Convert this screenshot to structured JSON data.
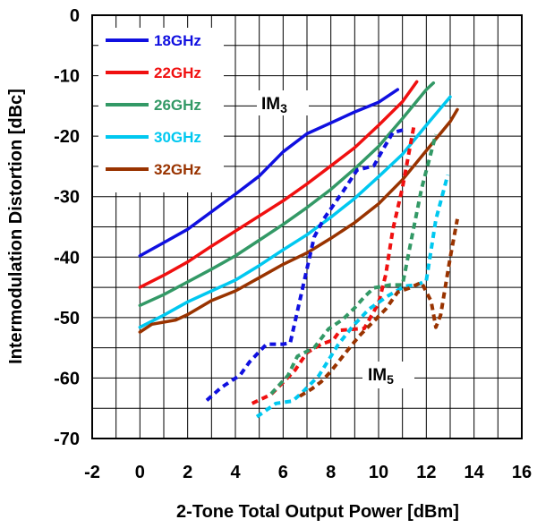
{
  "chart_data": {
    "type": "line",
    "xlabel": "2-Tone Total Output Power [dBm]",
    "ylabel": "Intermodulation Distortion [dBc]",
    "xlim": [
      -2,
      16
    ],
    "ylim": [
      -70,
      0
    ],
    "x_ticks": [
      "-2",
      "0",
      "2",
      "4",
      "6",
      "8",
      "10",
      "12",
      "14",
      "16"
    ],
    "y_ticks": [
      "0",
      "-10",
      "-20",
      "-30",
      "-40",
      "-50",
      "-60",
      "-70"
    ],
    "grid": true,
    "legend_position": "top-left",
    "annotations": {
      "im3": {
        "main": "IM",
        "sub": "3"
      },
      "im5": {
        "main": "IM",
        "sub": "5"
      }
    },
    "series": [
      {
        "name": "18GHz",
        "color": "#1010e0",
        "im3": [
          [
            0,
            -39.8
          ],
          [
            1,
            -37.6
          ],
          [
            2,
            -35.4
          ],
          [
            3,
            -32.5
          ],
          [
            4,
            -29.6
          ],
          [
            5,
            -26.6
          ],
          [
            6,
            -22.6
          ],
          [
            7,
            -19.6
          ],
          [
            8,
            -17.8
          ],
          [
            9,
            -16
          ],
          [
            10,
            -14.4
          ],
          [
            10.8,
            -12.3
          ]
        ],
        "im5": [
          [
            2.8,
            -63.7
          ],
          [
            3.4,
            -61.6
          ],
          [
            4.2,
            -59.5
          ],
          [
            4.6,
            -57.3
          ],
          [
            5.3,
            -54.4
          ],
          [
            6.0,
            -54.4
          ],
          [
            6.3,
            -54.2
          ],
          [
            6.8,
            -45.4
          ],
          [
            7.3,
            -36.7
          ],
          [
            7.7,
            -33.7
          ],
          [
            8.5,
            -29.2
          ],
          [
            9.1,
            -25.6
          ],
          [
            9.8,
            -24.9
          ],
          [
            10.2,
            -22.1
          ],
          [
            10.6,
            -19.4
          ],
          [
            11.1,
            -18.9
          ]
        ]
      },
      {
        "name": "22GHz",
        "color": "#f01010",
        "im3": [
          [
            0,
            -45
          ],
          [
            1,
            -43
          ],
          [
            2,
            -40.8
          ],
          [
            3,
            -38.2
          ],
          [
            4,
            -35.7
          ],
          [
            5,
            -33.2
          ],
          [
            6,
            -30.7
          ],
          [
            7,
            -27.9
          ],
          [
            8,
            -24.9
          ],
          [
            9,
            -21.9
          ],
          [
            10,
            -18.2
          ],
          [
            11,
            -14.3
          ],
          [
            11.6,
            -11
          ]
        ],
        "im5": [
          [
            4.7,
            -64.2
          ],
          [
            5.5,
            -62.7
          ],
          [
            6.5,
            -58.7
          ],
          [
            7.0,
            -55.8
          ],
          [
            7.6,
            -54.4
          ],
          [
            8.1,
            -53.7
          ],
          [
            8.4,
            -52.1
          ],
          [
            9.4,
            -51.8
          ],
          [
            9.6,
            -50.4
          ],
          [
            10.0,
            -47.6
          ],
          [
            10.3,
            -42.9
          ],
          [
            10.6,
            -35.4
          ],
          [
            11.0,
            -28.5
          ],
          [
            11.5,
            -17.9
          ]
        ]
      },
      {
        "name": "26GHz",
        "color": "#339966",
        "im3": [
          [
            0,
            -48
          ],
          [
            1,
            -46.2
          ],
          [
            2,
            -44.1
          ],
          [
            3,
            -42
          ],
          [
            4,
            -39.8
          ],
          [
            5,
            -37.2
          ],
          [
            6,
            -34.6
          ],
          [
            7,
            -31.8
          ],
          [
            8,
            -28.8
          ],
          [
            9,
            -25.4
          ],
          [
            10,
            -21.7
          ],
          [
            11,
            -17.1
          ],
          [
            12,
            -12.3
          ],
          [
            12.3,
            -11.2
          ]
        ],
        "im5": [
          [
            5.5,
            -62.6
          ],
          [
            6.2,
            -59.6
          ],
          [
            6.6,
            -56.4
          ],
          [
            7.3,
            -55.0
          ],
          [
            7.9,
            -51.9
          ],
          [
            8.5,
            -50.3
          ],
          [
            9.0,
            -48.4
          ],
          [
            9.4,
            -46.6
          ],
          [
            9.8,
            -45.1
          ],
          [
            10.5,
            -44.6
          ],
          [
            11.0,
            -44.6
          ],
          [
            11.4,
            -36.6
          ],
          [
            11.8,
            -28.7
          ],
          [
            12.4,
            -19.7
          ]
        ]
      },
      {
        "name": "30GHz",
        "color": "#00c8f0",
        "im3": [
          [
            0,
            -51.6
          ],
          [
            1,
            -49.6
          ],
          [
            2,
            -47.4
          ],
          [
            3,
            -45.6
          ],
          [
            4,
            -43.8
          ],
          [
            5,
            -41.4
          ],
          [
            6,
            -38.8
          ],
          [
            7,
            -36.3
          ],
          [
            8,
            -33.4
          ],
          [
            9,
            -30.3
          ],
          [
            10,
            -26.7
          ],
          [
            11,
            -23
          ],
          [
            12,
            -18.2
          ],
          [
            13,
            -13.5
          ]
        ],
        "im5": [
          [
            4.9,
            -66.4
          ],
          [
            5.7,
            -64.2
          ],
          [
            6.4,
            -63.8
          ],
          [
            6.8,
            -62.4
          ],
          [
            7.5,
            -59.6
          ],
          [
            8.3,
            -54.5
          ],
          [
            8.9,
            -51.5
          ],
          [
            9.6,
            -48.6
          ],
          [
            10.4,
            -46.4
          ],
          [
            11.1,
            -44.8
          ],
          [
            11.6,
            -44.6
          ],
          [
            12.0,
            -43.9
          ],
          [
            12.4,
            -33.8
          ],
          [
            12.9,
            -26.4
          ]
        ]
      },
      {
        "name": "32GHz",
        "color": "#993300",
        "im3": [
          [
            0,
            -52.4
          ],
          [
            0.5,
            -51.1
          ],
          [
            1.5,
            -50.4
          ],
          [
            2,
            -49.5
          ],
          [
            3,
            -47.2
          ],
          [
            4,
            -45.6
          ],
          [
            5,
            -43.4
          ],
          [
            6,
            -41.2
          ],
          [
            7,
            -39.3
          ],
          [
            8,
            -36.9
          ],
          [
            9,
            -34.3
          ],
          [
            10,
            -31.2
          ],
          [
            11,
            -27.2
          ],
          [
            12,
            -22.4
          ],
          [
            13,
            -17.6
          ],
          [
            13.3,
            -15.6
          ]
        ],
        "im5": [
          [
            6.7,
            -63.0
          ],
          [
            7.2,
            -61.8
          ],
          [
            7.6,
            -60.6
          ],
          [
            8.0,
            -58.9
          ],
          [
            8.6,
            -55.9
          ],
          [
            9.2,
            -53.0
          ],
          [
            9.8,
            -50.6
          ],
          [
            10.3,
            -48.6
          ],
          [
            10.8,
            -45.8
          ],
          [
            11.3,
            -45.1
          ],
          [
            11.8,
            -44.2
          ],
          [
            12.2,
            -47.3
          ],
          [
            12.4,
            -51.6
          ],
          [
            12.6,
            -49.6
          ],
          [
            13.0,
            -40.1
          ],
          [
            13.3,
            -33.7
          ]
        ]
      }
    ]
  }
}
